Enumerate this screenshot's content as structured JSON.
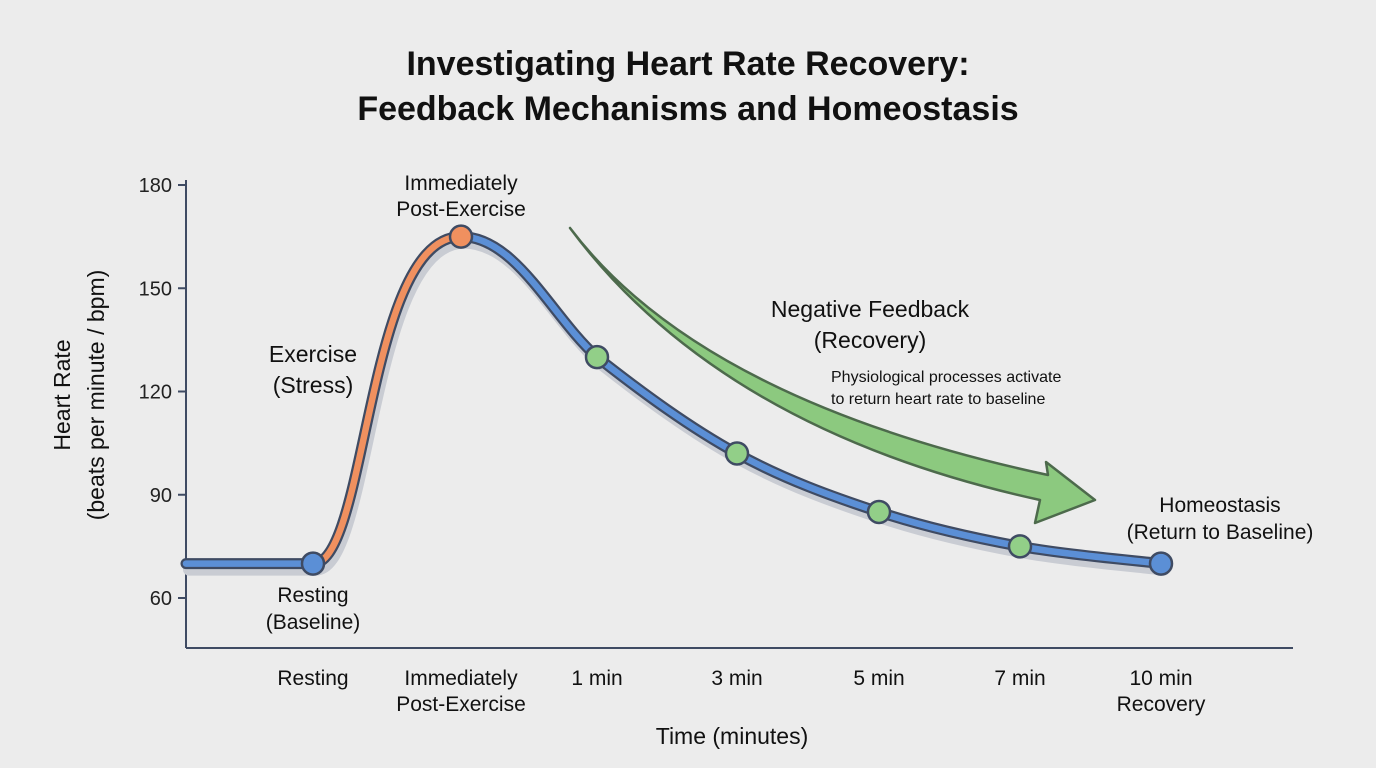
{
  "chart_data": {
    "type": "line",
    "title": [
      "Investigating Heart Rate Recovery:",
      "Feedback Mechanisms and Homeostasis"
    ],
    "xlabel": "Time (minutes)",
    "ylabel": [
      "Heart Rate",
      "(beats per minute / bpm)"
    ],
    "ylim": [
      50,
      180
    ],
    "yticks": [
      60,
      90,
      120,
      150,
      180
    ],
    "categories": [
      [
        "Resting"
      ],
      [
        "Immediately",
        "Post-Exercise"
      ],
      [
        "1 min"
      ],
      [
        "3 min"
      ],
      [
        "5 min"
      ],
      [
        "7 min"
      ],
      [
        "10 min",
        "Recovery"
      ]
    ],
    "values": [
      70,
      165,
      130,
      102,
      85,
      75,
      70
    ],
    "grid": false,
    "colors": {
      "exercise": "#f0905f",
      "recovery": "#5b8fd6",
      "outline": "#3f4b63",
      "point_recovery": "#92cf88",
      "point_endpoint": "#5b8fd6",
      "arrow": "#8cc97f",
      "arrow_outline": "#4d6a4c"
    },
    "annotations": {
      "peak": [
        "Immediately",
        "Post-Exercise"
      ],
      "exercise": [
        "Exercise",
        "(Stress)"
      ],
      "resting": [
        "Resting",
        "(Baseline)"
      ],
      "feedback": [
        "Negative Feedback",
        "(Recovery)"
      ],
      "feedback_note": [
        "Physiological processes activate",
        "to return heart rate to baseline"
      ],
      "homeostasis": [
        "Homeostasis",
        "(Return to Baseline)"
      ]
    }
  }
}
